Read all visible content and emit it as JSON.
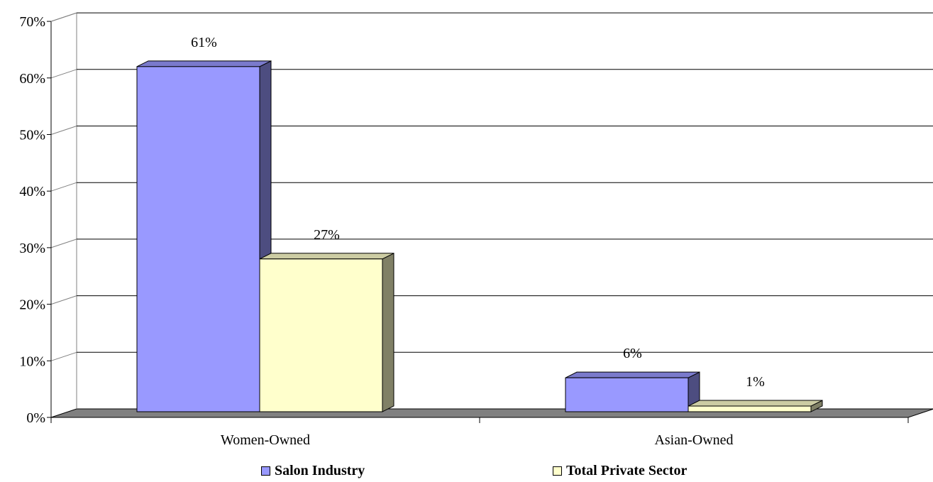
{
  "chart_data": {
    "type": "bar",
    "categories": [
      "Women-Owned",
      "Asian-Owned"
    ],
    "series": [
      {
        "name": "Salon Industry",
        "values": [
          61,
          6
        ],
        "labels": [
          "61%",
          "6%"
        ],
        "color": "#9999ff",
        "side_color": "#4d4d80",
        "top_color": "#7a7acc"
      },
      {
        "name": "Total Private Sector",
        "values": [
          27,
          1
        ],
        "labels": [
          "27%",
          "1%"
        ],
        "color": "#ffffcc",
        "side_color": "#808066",
        "top_color": "#cccca3"
      }
    ],
    "y_ticks": [
      "0%",
      "10%",
      "20%",
      "30%",
      "40%",
      "50%",
      "60%",
      "70%"
    ],
    "ylim": [
      0,
      70
    ],
    "grid": true,
    "legend_position": "bottom"
  }
}
